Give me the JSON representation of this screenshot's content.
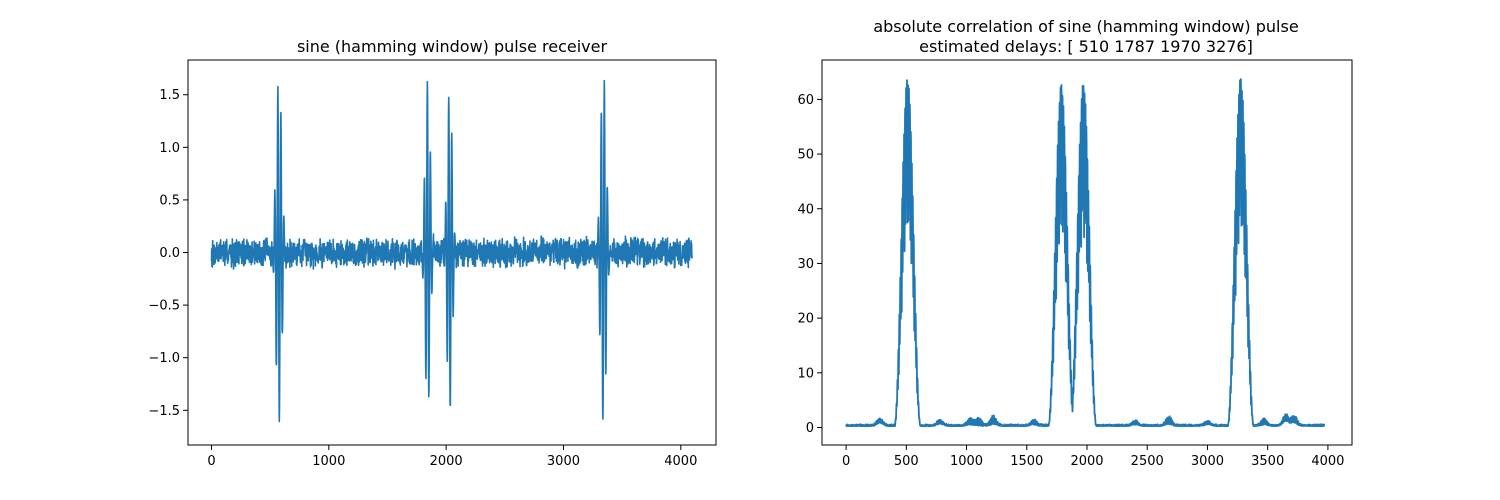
{
  "chart_data": [
    {
      "type": "line",
      "title": "sine (hamming window) pulse receiver",
      "xlabel": "",
      "ylabel": "",
      "xlim": [
        -200,
        4300
      ],
      "ylim": [
        -1.83,
        1.83
      ],
      "x_ticks": [
        0,
        1000,
        2000,
        3000,
        4000
      ],
      "x_tick_labels": [
        "0",
        "1000",
        "2000",
        "3000",
        "4000"
      ],
      "y_ticks": [
        -1.5,
        -1.0,
        -0.5,
        0.0,
        0.5,
        1.0,
        1.5
      ],
      "y_tick_labels": [
        "−1.5",
        "−1.0",
        "−0.5",
        "0.0",
        "0.5",
        "1.0",
        "1.5"
      ],
      "grid": false,
      "series_color": "#1f77b4",
      "signal": {
        "x_range": [
          0,
          4096
        ],
        "noise_amplitude": 0.16,
        "pulses": [
          {
            "center": 575,
            "peak_max": 1.65,
            "peak_min": -1.61,
            "half_width": 55
          },
          {
            "center": 1843,
            "peak_max": 1.63,
            "peak_min": -1.52,
            "half_width": 50
          },
          {
            "center": 2030,
            "peak_max": 1.57,
            "peak_min": -1.53,
            "half_width": 50
          },
          {
            "center": 3340,
            "peak_max": 1.7,
            "peak_min": -1.65,
            "half_width": 55
          }
        ]
      }
    },
    {
      "type": "line",
      "title": "absolute correlation of sine (hamming window) pulse",
      "subtitle": "estimated delays: [ 510 1787 1970 3276]",
      "xlabel": "",
      "ylabel": "",
      "xlim": [
        -200,
        4200
      ],
      "ylim": [
        -3.2,
        67.2
      ],
      "x_ticks": [
        0,
        500,
        1000,
        1500,
        2000,
        2500,
        3000,
        3500,
        4000
      ],
      "x_tick_labels": [
        "0",
        "500",
        "1000",
        "1500",
        "2000",
        "2500",
        "3000",
        "3500",
        "4000"
      ],
      "y_ticks": [
        0,
        10,
        20,
        30,
        40,
        50,
        60
      ],
      "y_tick_labels": [
        "0",
        "10",
        "20",
        "30",
        "40",
        "50",
        "60"
      ],
      "grid": false,
      "series_color": "#1f77b4",
      "signal": {
        "x_range": [
          0,
          3970
        ],
        "peaks": [
          {
            "center": 510,
            "height": 64.0,
            "half_width": 110
          },
          {
            "center": 1787,
            "height": 62.8,
            "half_width": 110
          },
          {
            "center": 1970,
            "height": 63.0,
            "half_width": 110
          },
          {
            "center": 3276,
            "height": 64.0,
            "half_width": 110
          }
        ],
        "bumps": [
          {
            "center": 280,
            "height": 1.2
          },
          {
            "center": 780,
            "height": 1.0
          },
          {
            "center": 1030,
            "height": 1.3
          },
          {
            "center": 1100,
            "height": 1.5
          },
          {
            "center": 1220,
            "height": 1.8
          },
          {
            "center": 1560,
            "height": 1.1
          },
          {
            "center": 2400,
            "height": 0.9
          },
          {
            "center": 2680,
            "height": 1.6
          },
          {
            "center": 3000,
            "height": 0.8
          },
          {
            "center": 3470,
            "height": 1.3
          },
          {
            "center": 3650,
            "height": 1.9
          },
          {
            "center": 3720,
            "height": 1.7
          }
        ]
      }
    }
  ]
}
